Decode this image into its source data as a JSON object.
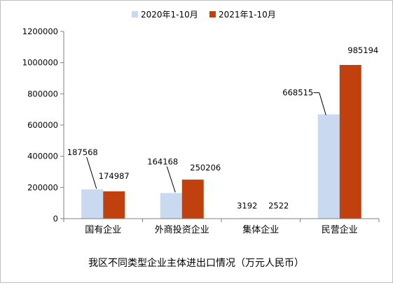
{
  "chart_data": {
    "type": "bar",
    "title": "我区不同类型企业主体进出口情况（万元人民币）",
    "categories": [
      "国有企业",
      "外商投资企业",
      "集体企业",
      "民营企业"
    ],
    "series": [
      {
        "name": "2020年1-10月",
        "color": "#c9d9ef",
        "values": [
          187568,
          164168,
          3192,
          668515
        ]
      },
      {
        "name": "2021年1-10月",
        "color": "#c0400e",
        "values": [
          174987,
          250206,
          2522,
          985194
        ]
      }
    ],
    "ylim": [
      0,
      1200000
    ],
    "yticks": [
      0,
      200000,
      400000,
      600000,
      800000,
      1000000,
      1200000
    ],
    "xlabel": "",
    "ylabel": "",
    "legend": "top-center",
    "grid": false
  }
}
